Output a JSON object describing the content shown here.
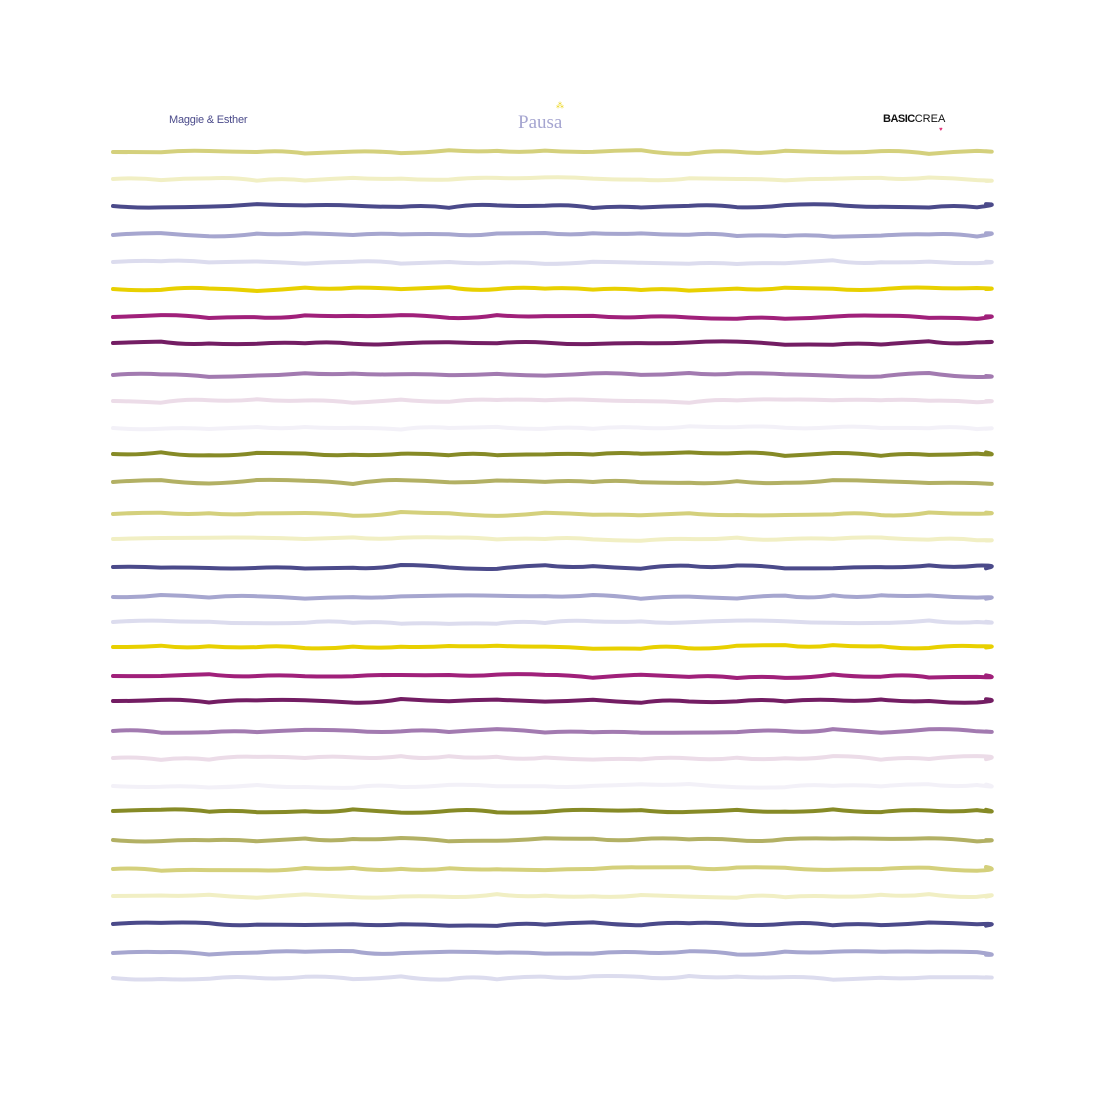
{
  "brands": {
    "left": "Maggie & Esther",
    "center": "Pausa",
    "right_bold": "BASIC",
    "right_light": "CREA"
  },
  "stripe_colors": [
    "#d4d07c",
    "#f1efc4",
    "#4b4a8a",
    "#a6a6cf",
    "#dcdcee",
    "#e8d000",
    "#a0207a",
    "#731d63",
    "#a27ab0",
    "#ecdce8",
    "#f3f1f8",
    "#868a26",
    "#b2b064"
  ]
}
